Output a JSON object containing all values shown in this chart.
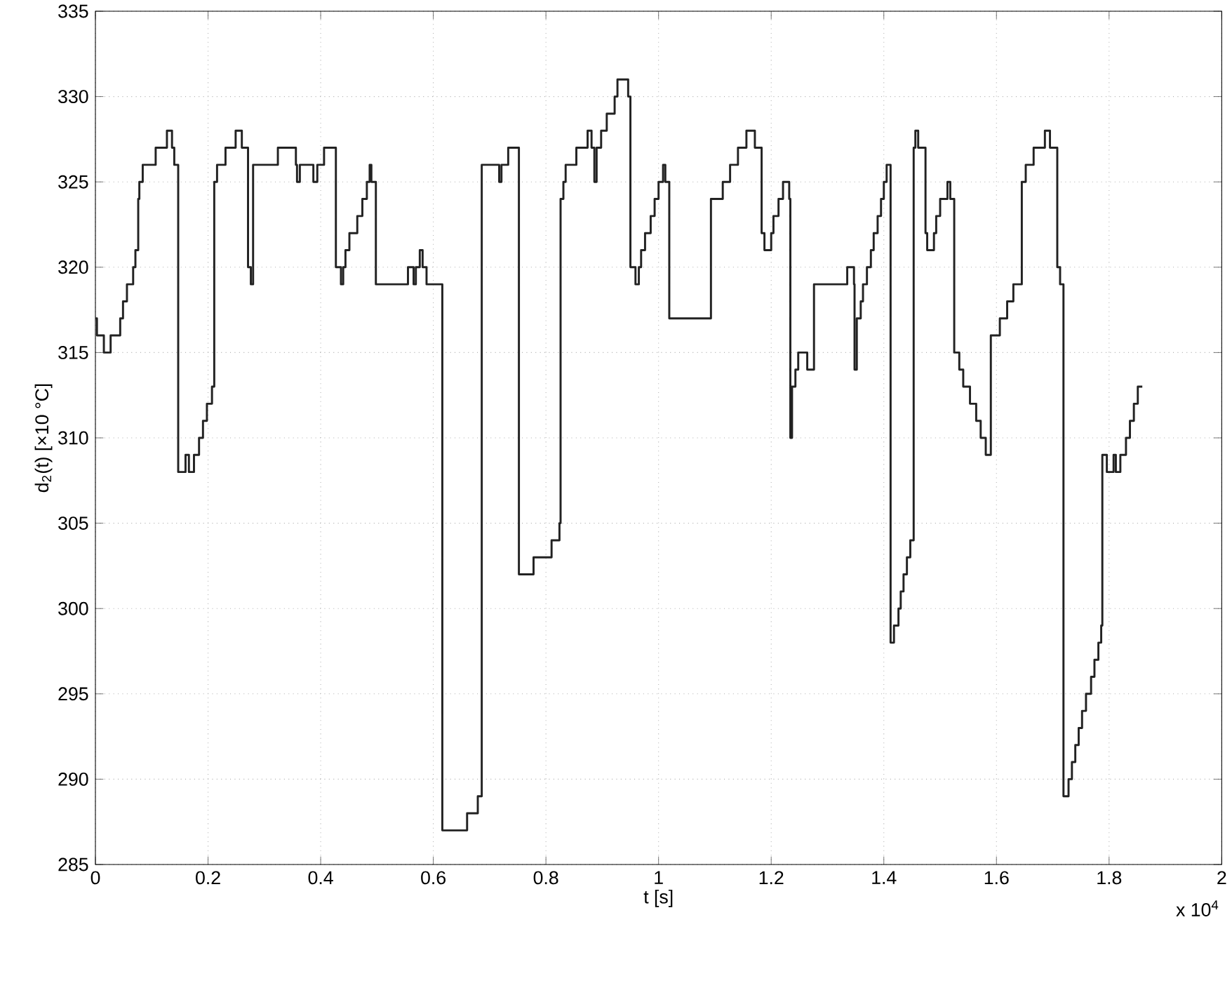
{
  "chart_data": {
    "type": "step",
    "xlabel": "t [s]",
    "ylabel": "d$_{2}$(t) [×10 °C]",
    "annotations": [
      "x 10$^{4}$"
    ],
    "xlim": [
      0,
      2
    ],
    "xticks": [
      0,
      0.2,
      0.4,
      0.6,
      0.8,
      1,
      1.2,
      1.4,
      1.6,
      1.8,
      2
    ],
    "ylim": [
      285,
      335
    ],
    "yticks": [
      285,
      290,
      295,
      300,
      305,
      310,
      315,
      320,
      325,
      330,
      335
    ],
    "grid": true,
    "marker": "none",
    "line_style": "solid",
    "series": [
      {
        "color": "#222222",
        "x": [
          0,
          0.0027,
          0.015,
          0.027,
          0.044,
          0.049,
          0.056,
          0.067,
          0.071,
          0.076,
          0.078,
          0.084,
          0.107,
          0.127,
          0.136,
          0.14,
          0.147,
          0.16,
          0.166,
          0.175,
          0.184,
          0.191,
          0.198,
          0.207,
          0.211,
          0.216,
          0.231,
          0.249,
          0.26,
          0.271,
          0.276,
          0.28,
          0.324,
          0.356,
          0.358,
          0.363,
          0.387,
          0.394,
          0.406,
          0.427,
          0.436,
          0.44,
          0.444,
          0.451,
          0.465,
          0.474,
          0.482,
          0.487,
          0.49,
          0.498,
          0.555,
          0.565,
          0.569,
          0.576,
          0.581,
          0.588,
          0.616,
          0.66,
          0.679,
          0.686,
          0.717,
          0.721,
          0.733,
          0.752,
          0.778,
          0.81,
          0.824,
          0.826,
          0.831,
          0.835,
          0.854,
          0.874,
          0.881,
          0.886,
          0.89,
          0.898,
          0.908,
          0.922,
          0.927,
          0.946,
          0.95,
          0.959,
          0.965,
          0.969,
          0.976,
          0.986,
          0.993,
          1.0,
          1.008,
          1.012,
          1.019,
          1.093,
          1.114,
          1.127,
          1.141,
          1.156,
          1.171,
          1.183,
          1.188,
          1.2,
          1.204,
          1.213,
          1.221,
          1.232,
          1.234,
          1.237,
          1.243,
          1.248,
          1.264,
          1.276,
          1.335,
          1.347,
          1.348,
          1.352,
          1.359,
          1.363,
          1.37,
          1.377,
          1.382,
          1.389,
          1.395,
          1.4,
          1.405,
          1.412,
          1.418,
          1.426,
          1.43,
          1.435,
          1.441,
          1.447,
          1.453,
          1.456,
          1.461,
          1.474,
          1.477,
          1.489,
          1.493,
          1.5,
          1.513,
          1.518,
          1.525,
          1.534,
          1.541,
          1.553,
          1.564,
          1.572,
          1.581,
          1.59,
          1.606,
          1.619,
          1.63,
          1.645,
          1.652,
          1.666,
          1.686,
          1.695,
          1.708,
          1.713,
          1.719,
          1.728,
          1.734,
          1.74,
          1.746,
          1.752,
          1.759,
          1.768,
          1.774,
          1.781,
          1.786,
          1.788,
          1.796,
          1.808,
          1.812,
          1.82,
          1.83,
          1.837,
          1.844,
          1.851,
          1.859
        ],
        "values": [
          317,
          316,
          315,
          316,
          317,
          318,
          319,
          320,
          321,
          324,
          325,
          326,
          327,
          328,
          327,
          326,
          308,
          309,
          308,
          309,
          310,
          311,
          312,
          313,
          325,
          326,
          327,
          328,
          327,
          320,
          319,
          326,
          327,
          326,
          325,
          326,
          325,
          326,
          327,
          320,
          319,
          320,
          321,
          322,
          323,
          324,
          325,
          326,
          325,
          319,
          320,
          319,
          320,
          321,
          320,
          319,
          287,
          288,
          289,
          326,
          325,
          326,
          327,
          302,
          303,
          304,
          305,
          324,
          325,
          326,
          327,
          328,
          327,
          325,
          327,
          328,
          329,
          330,
          331,
          330,
          320,
          319,
          320,
          321,
          322,
          323,
          324,
          325,
          326,
          325,
          317,
          324,
          325,
          326,
          327,
          328,
          327,
          322,
          321,
          322,
          323,
          324,
          325,
          324,
          310,
          313,
          314,
          315,
          314,
          319,
          320,
          319,
          314,
          317,
          318,
          319,
          320,
          321,
          322,
          323,
          324,
          325,
          326,
          298,
          299,
          300,
          301,
          302,
          303,
          304,
          327,
          328,
          327,
          322,
          321,
          322,
          323,
          324,
          325,
          324,
          315,
          314,
          313,
          312,
          311,
          310,
          309,
          316,
          317,
          318,
          319,
          325,
          326,
          327,
          328,
          327,
          320,
          319,
          289,
          290,
          291,
          292,
          293,
          294,
          295,
          296,
          297,
          298,
          299,
          309,
          308,
          309,
          308,
          309,
          310,
          311,
          312,
          313,
          313
        ]
      }
    ]
  }
}
